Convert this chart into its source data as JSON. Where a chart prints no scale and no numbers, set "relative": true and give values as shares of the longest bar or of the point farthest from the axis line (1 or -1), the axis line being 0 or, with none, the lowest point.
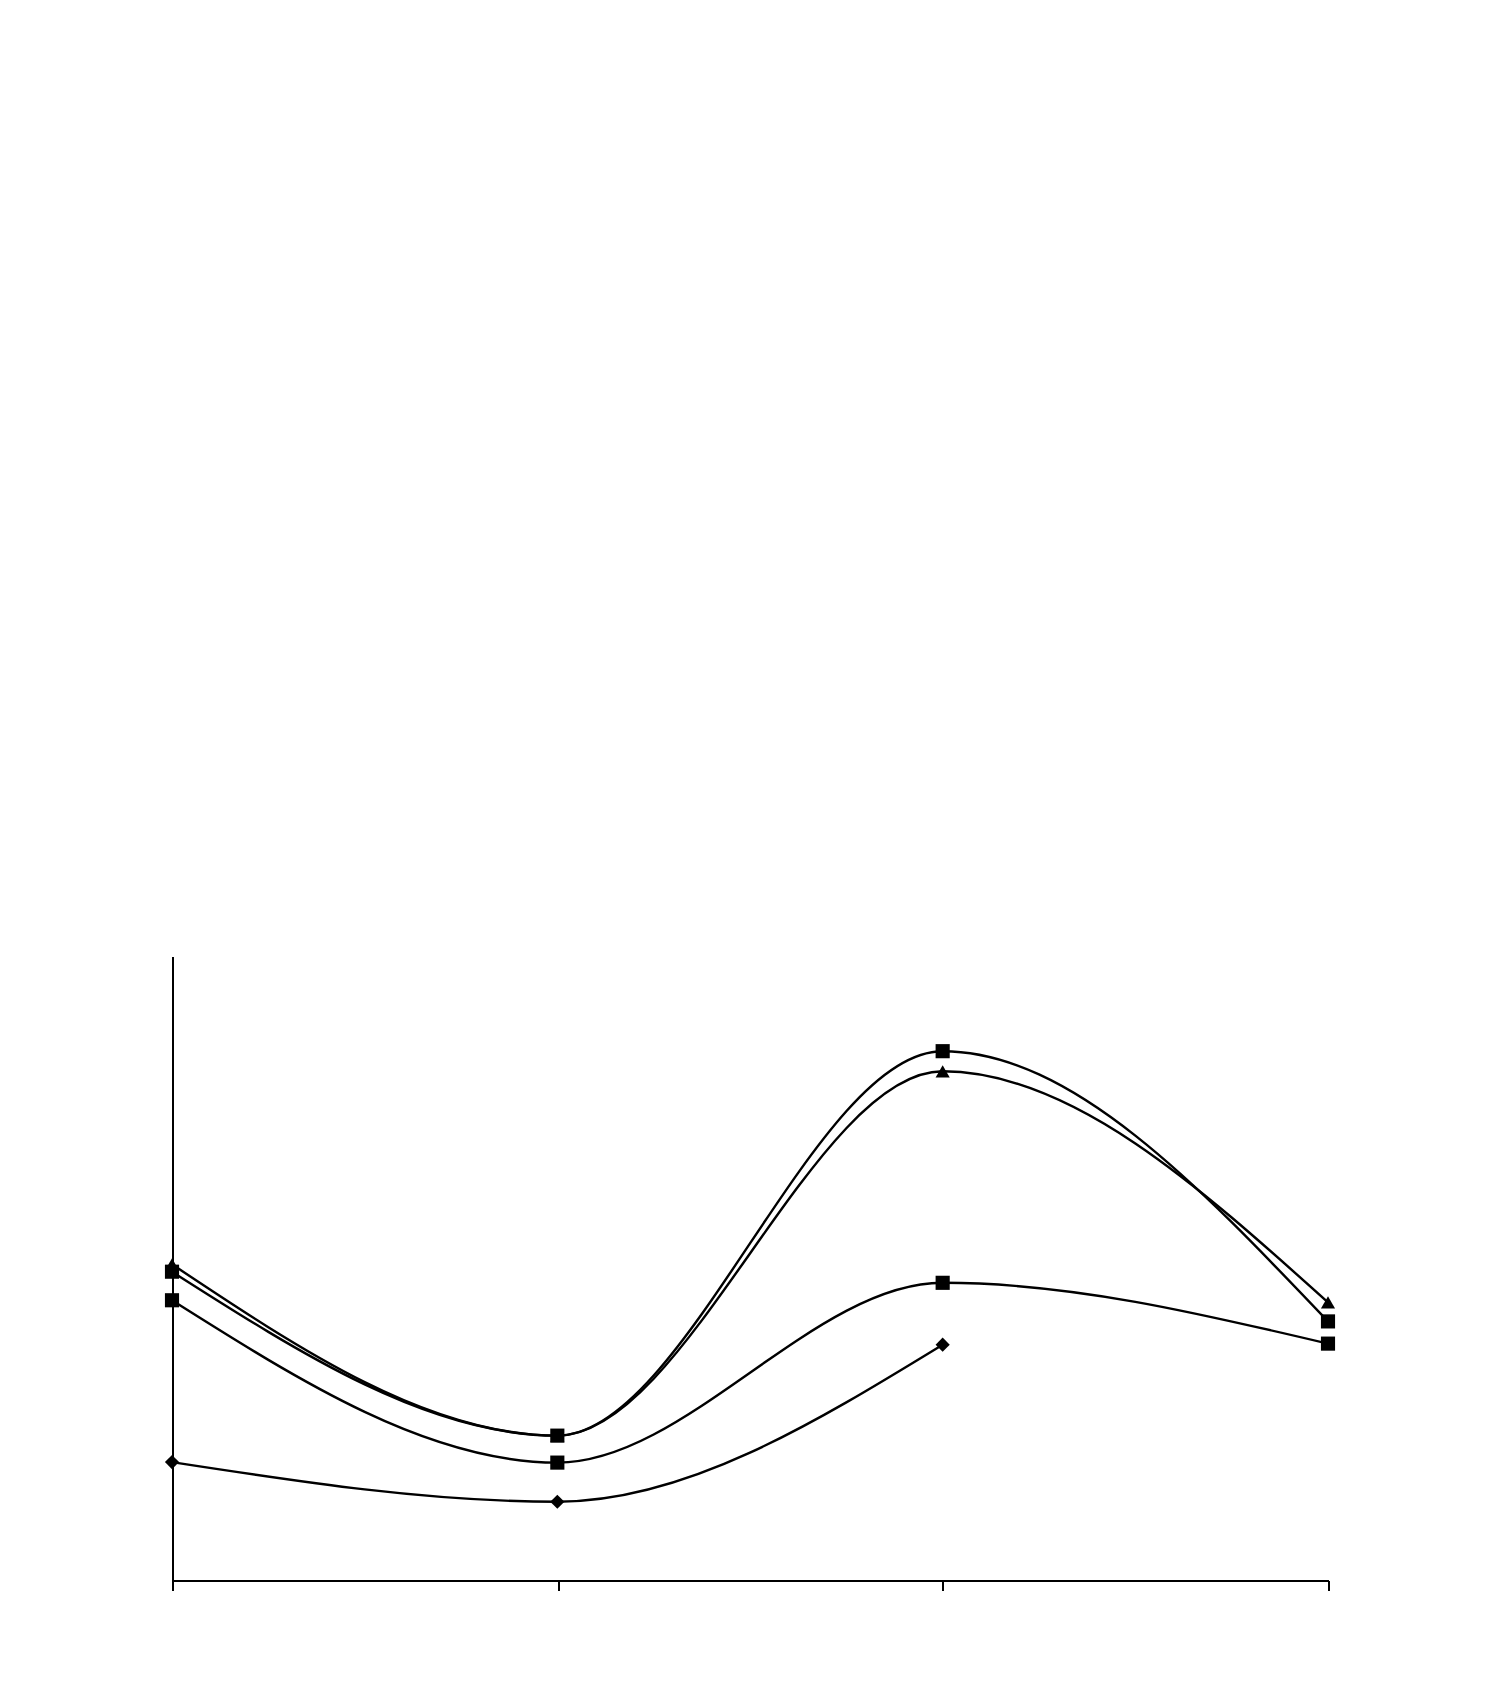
{
  "chart_data": {
    "type": "line",
    "relative": true,
    "categories": [
      null,
      null,
      null,
      null
    ],
    "grid": false,
    "series": [
      {
        "color": "#000000",
        "marker": "diamond",
        "values": [
          0.223,
          0.148,
          0.445,
          null
        ]
      },
      {
        "color": "#000000",
        "marker": "square",
        "values": [
          0.529,
          0.222,
          0.562,
          0.447
        ]
      },
      {
        "color": "#000000",
        "marker": "triangle",
        "values": [
          0.597,
          0.273,
          0.962,
          0.525
        ]
      },
      {
        "color": "#000000",
        "marker": "square",
        "values": [
          0.583,
          0.273,
          1,
          0.489
        ]
      }
    ]
  }
}
